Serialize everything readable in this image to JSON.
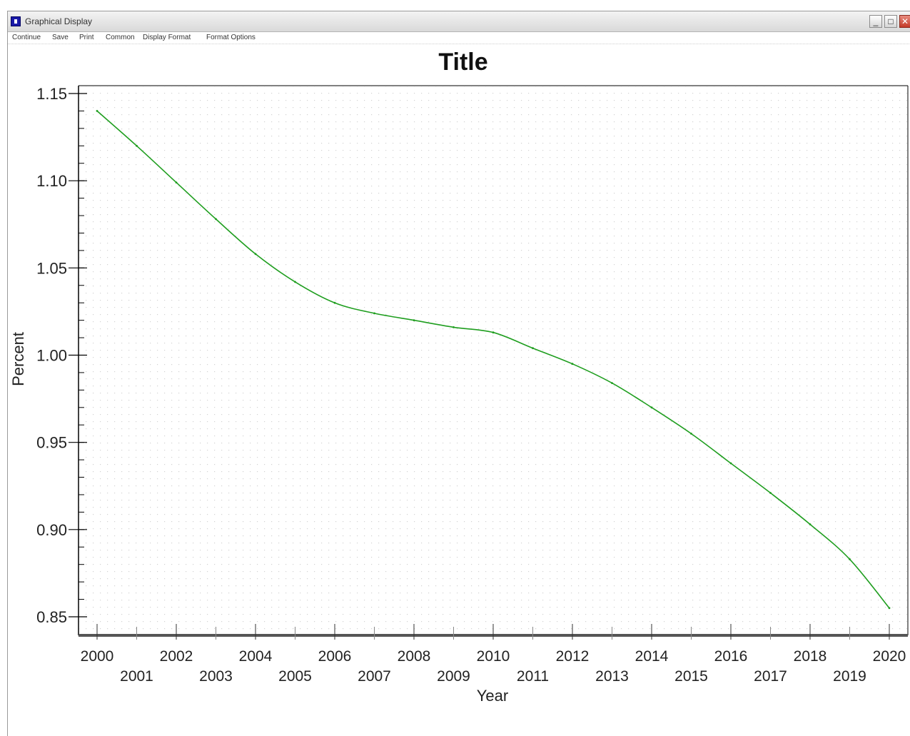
{
  "window": {
    "title": "Graphical Display",
    "min_glyph": "_",
    "max_glyph": "□",
    "close_glyph": "✕",
    "icon": "app-icon"
  },
  "menu": {
    "items": [
      "Continue",
      "Save",
      "Print",
      "Common",
      "Display Format",
      "Format Options"
    ]
  },
  "colors": {
    "series": "#1f9e1f",
    "axis": "#000000",
    "grid_dots": "#d2d2d2"
  },
  "chart_data": {
    "type": "line",
    "title": "Title",
    "xlabel": "Year",
    "ylabel": "Percent",
    "xlim": [
      2000,
      2020
    ],
    "ylim": [
      0.85,
      1.15
    ],
    "yticks": [
      "0.85",
      "0.90",
      "0.95",
      "1.00",
      "1.05",
      "1.10",
      "1.15"
    ],
    "xticks_upper": [
      "2000",
      "2002",
      "2004",
      "2006",
      "2008",
      "2010",
      "2012",
      "2014",
      "2016",
      "2018",
      "2020"
    ],
    "xticks_lower": [
      "2001",
      "2003",
      "2005",
      "2007",
      "2009",
      "2011",
      "2013",
      "2015",
      "2017",
      "2019"
    ],
    "grid": true,
    "x": [
      2000,
      2001,
      2002,
      2003,
      2004,
      2005,
      2006,
      2007,
      2008,
      2009,
      2010,
      2011,
      2012,
      2013,
      2014,
      2015,
      2016,
      2017,
      2018,
      2019,
      2020
    ],
    "series": [
      {
        "values": [
          1.14,
          1.12,
          1.099,
          1.078,
          1.058,
          1.042,
          1.03,
          1.024,
          1.02,
          1.016,
          1.013,
          1.004,
          0.995,
          0.984,
          0.97,
          0.955,
          0.938,
          0.921,
          0.903,
          0.883,
          0.855
        ]
      }
    ]
  }
}
